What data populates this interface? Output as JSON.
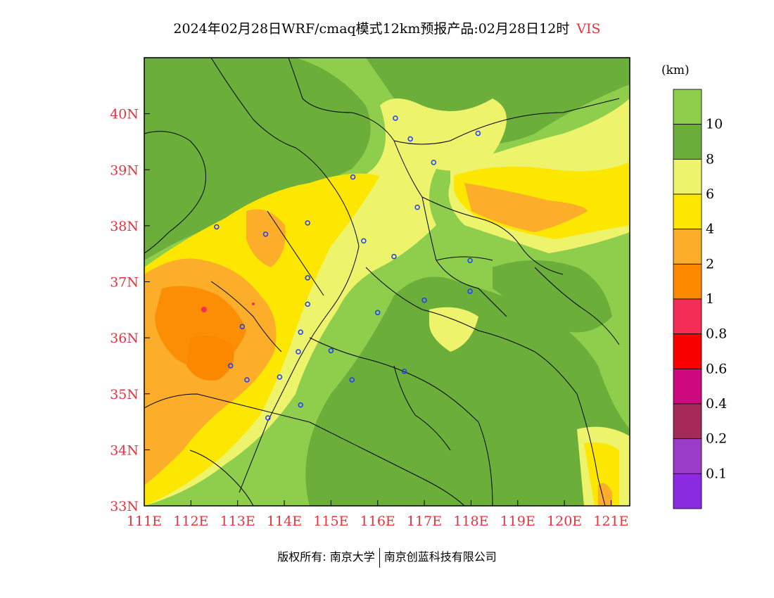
{
  "title": {
    "main": "2024年02月28日WRF/cmaq模式12km预报产品:02月28日12时",
    "variable": "VIS"
  },
  "colorbar": {
    "unit": "(km)",
    "levels": [
      "10",
      "8",
      "6",
      "4",
      "2",
      "1",
      "0.8",
      "0.6",
      "0.4",
      "0.2",
      "0.1"
    ],
    "colors": [
      "#8fce4c",
      "#6cae3a",
      "#eef36c",
      "#fde700",
      "#fcad2a",
      "#fc8800",
      "#f42d55",
      "#fa0000",
      "#cc0a7e",
      "#a52a5a",
      "#9b3cc8",
      "#8a2be2"
    ]
  },
  "axes": {
    "x_ticks": [
      "111E",
      "112E",
      "113E",
      "114E",
      "115E",
      "116E",
      "117E",
      "118E",
      "119E",
      "120E",
      "121E"
    ],
    "y_ticks": [
      "40N",
      "39N",
      "38N",
      "37N",
      "36N",
      "35N",
      "34N",
      "33N"
    ],
    "lon_range": [
      111,
      121.4
    ],
    "lat_range": [
      33,
      41
    ]
  },
  "stations": [
    {
      "lon": 116.38,
      "lat": 39.92
    },
    {
      "lon": 116.7,
      "lat": 39.55
    },
    {
      "lon": 117.2,
      "lat": 39.13
    },
    {
      "lon": 118.15,
      "lat": 39.65
    },
    {
      "lon": 115.47,
      "lat": 38.87
    },
    {
      "lon": 116.85,
      "lat": 38.33
    },
    {
      "lon": 112.55,
      "lat": 37.98
    },
    {
      "lon": 113.6,
      "lat": 37.85
    },
    {
      "lon": 114.5,
      "lat": 38.05
    },
    {
      "lon": 115.7,
      "lat": 37.73
    },
    {
      "lon": 116.35,
      "lat": 37.45
    },
    {
      "lon": 117.98,
      "lat": 37.38
    },
    {
      "lon": 114.5,
      "lat": 37.07
    },
    {
      "lon": 117.98,
      "lat": 36.83
    },
    {
      "lon": 117.0,
      "lat": 36.67
    },
    {
      "lon": 114.5,
      "lat": 36.6
    },
    {
      "lon": 116.0,
      "lat": 36.45
    },
    {
      "lon": 113.1,
      "lat": 36.2
    },
    {
      "lon": 114.35,
      "lat": 36.1
    },
    {
      "lon": 115.0,
      "lat": 35.77
    },
    {
      "lon": 114.3,
      "lat": 35.75
    },
    {
      "lon": 112.85,
      "lat": 35.5
    },
    {
      "lon": 113.2,
      "lat": 35.25
    },
    {
      "lon": 113.9,
      "lat": 35.3
    },
    {
      "lon": 115.45,
      "lat": 35.25
    },
    {
      "lon": 116.57,
      "lat": 35.4
    },
    {
      "lon": 114.35,
      "lat": 34.8
    },
    {
      "lon": 113.65,
      "lat": 34.57
    }
  ],
  "footer": {
    "left": "版权所有: 南京大学",
    "right": "南京创蓝科技有限公司"
  }
}
